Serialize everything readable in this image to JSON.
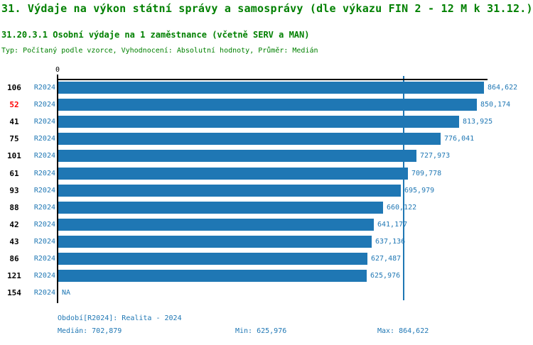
{
  "header": {
    "title": "31. Výdaje na výkon státní správy a samosprávy (dle výkazu FIN 2 - 12 M k 31.12.)",
    "subtitle": "31.20.3.1 Osobní výdaje na 1 zaměstnance (včetně SERV a MAN)",
    "meta": "Typ: Počítaný podle vzorce, Vyhodnocení: Absolutní hodnoty, Průměr: Medián"
  },
  "chart_data": {
    "type": "bar",
    "orientation": "horizontal",
    "title": "31.20.3.1 Osobní výdaje na 1 zaměstnance (včetně SERV a MAN)",
    "origin_tick_label": "0",
    "series_label": "R2024",
    "categories": [
      "106",
      "52",
      "41",
      "75",
      "101",
      "61",
      "93",
      "88",
      "42",
      "43",
      "86",
      "121",
      "154"
    ],
    "values": [
      864622,
      850174,
      813925,
      776041,
      727973,
      709778,
      695979,
      660122,
      641177,
      637136,
      627487,
      625976,
      null
    ],
    "rows": [
      {
        "id": "106",
        "period": "R2024",
        "value": 864622,
        "value_label": "864,622",
        "highlight": false
      },
      {
        "id": "52",
        "period": "R2024",
        "value": 850174,
        "value_label": "850,174",
        "highlight": true
      },
      {
        "id": "41",
        "period": "R2024",
        "value": 813925,
        "value_label": "813,925",
        "highlight": false
      },
      {
        "id": "75",
        "period": "R2024",
        "value": 776041,
        "value_label": "776,041",
        "highlight": false
      },
      {
        "id": "101",
        "period": "R2024",
        "value": 727973,
        "value_label": "727,973",
        "highlight": false
      },
      {
        "id": "61",
        "period": "R2024",
        "value": 709778,
        "value_label": "709,778",
        "highlight": false
      },
      {
        "id": "93",
        "period": "R2024",
        "value": 695979,
        "value_label": "695,979",
        "highlight": false
      },
      {
        "id": "88",
        "period": "R2024",
        "value": 660122,
        "value_label": "660,122",
        "highlight": false
      },
      {
        "id": "42",
        "period": "R2024",
        "value": 641177,
        "value_label": "641,177",
        "highlight": false
      },
      {
        "id": "43",
        "period": "R2024",
        "value": 637136,
        "value_label": "637,136",
        "highlight": false
      },
      {
        "id": "86",
        "period": "R2024",
        "value": 627487,
        "value_label": "627,487",
        "highlight": false
      },
      {
        "id": "121",
        "period": "R2024",
        "value": 625976,
        "value_label": "625,976",
        "highlight": false
      },
      {
        "id": "154",
        "period": "R2024",
        "value": null,
        "value_label": "NA",
        "highlight": false
      }
    ],
    "median_value": 702879,
    "axis_max_value": 864622,
    "xlim": [
      0,
      864622
    ],
    "median_line": true,
    "grid": false,
    "colors": {
      "bar": "#1f77b4",
      "median_line": "#1f77b4",
      "value_text": "#1f77b4",
      "period_text": "#1f77b4",
      "category_text": "#000000",
      "highlight_category_text": "#ff0000",
      "heading_text": "#008000",
      "axis": "#000000"
    }
  },
  "footer": {
    "period_line": "Období[R2024]: Realita - 2024",
    "median": "Medián: 702,879",
    "min": "Min: 625,976",
    "max": "Max: 864,622"
  }
}
